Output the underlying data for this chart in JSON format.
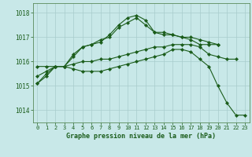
{
  "title": "Graphe pression niveau de la mer (hPa)",
  "xlim": [
    -0.5,
    23.5
  ],
  "ylim": [
    1013.5,
    1018.4
  ],
  "yticks": [
    1014,
    1015,
    1016,
    1017,
    1018
  ],
  "xtick_labels": [
    "0",
    "1",
    "2",
    "3",
    "4",
    "5",
    "6",
    "7",
    "8",
    "9",
    "10",
    "11",
    "12",
    "13",
    "14",
    "15",
    "16",
    "17",
    "18",
    "19",
    "20",
    "21",
    "22",
    "23"
  ],
  "bg_color": "#c8e8e8",
  "grid_color": "#a8cccc",
  "line_color": "#1a5c1a",
  "series": [
    {
      "x": [
        0,
        1,
        2,
        3,
        4,
        5,
        6,
        7,
        8,
        9,
        10,
        11,
        12,
        13,
        14,
        15,
        16,
        17,
        18,
        19,
        20
      ],
      "y": [
        1015.1,
        1015.5,
        1015.8,
        1015.8,
        1016.2,
        1016.6,
        1016.7,
        1016.8,
        1017.1,
        1017.5,
        1017.8,
        1017.9,
        1017.7,
        1017.2,
        1017.2,
        1017.1,
        1017.0,
        1017.0,
        1016.9,
        1016.8,
        1016.7
      ]
    },
    {
      "x": [
        0,
        1,
        2,
        3,
        4,
        5,
        6,
        7,
        8,
        9,
        10,
        11,
        12,
        13,
        14,
        15,
        16,
        17,
        18,
        19,
        20
      ],
      "y": [
        1015.4,
        1015.6,
        1015.8,
        1015.8,
        1016.3,
        1016.6,
        1016.7,
        1016.9,
        1017.0,
        1017.4,
        1017.6,
        1017.8,
        1017.5,
        1017.2,
        1017.1,
        1017.1,
        1017.0,
        1016.9,
        1016.7,
        1016.7,
        1016.7
      ]
    },
    {
      "x": [
        0,
        1,
        2,
        3,
        4,
        5,
        6,
        7,
        8,
        9,
        10,
        11,
        12,
        13,
        14,
        15,
        16,
        17,
        18,
        19,
        20,
        21,
        22
      ],
      "y": [
        1015.8,
        1015.8,
        1015.8,
        1015.8,
        1015.9,
        1016.0,
        1016.0,
        1016.1,
        1016.1,
        1016.2,
        1016.3,
        1016.4,
        1016.5,
        1016.6,
        1016.6,
        1016.7,
        1016.7,
        1016.7,
        1016.6,
        1016.3,
        1016.2,
        1016.1,
        1016.1
      ]
    },
    {
      "x": [
        0,
        1,
        2,
        3,
        4,
        5,
        6,
        7,
        8,
        9,
        10,
        11,
        12,
        13,
        14,
        15,
        16,
        17,
        18,
        19,
        20,
        21,
        22,
        23
      ],
      "y": [
        1015.1,
        1015.4,
        1015.8,
        1015.8,
        1015.7,
        1015.6,
        1015.6,
        1015.6,
        1015.7,
        1015.8,
        1015.9,
        1016.0,
        1016.1,
        1016.2,
        1016.3,
        1016.5,
        1016.5,
        1016.4,
        1016.1,
        1015.8,
        1015.0,
        1014.3,
        1013.8,
        1013.8
      ]
    }
  ]
}
